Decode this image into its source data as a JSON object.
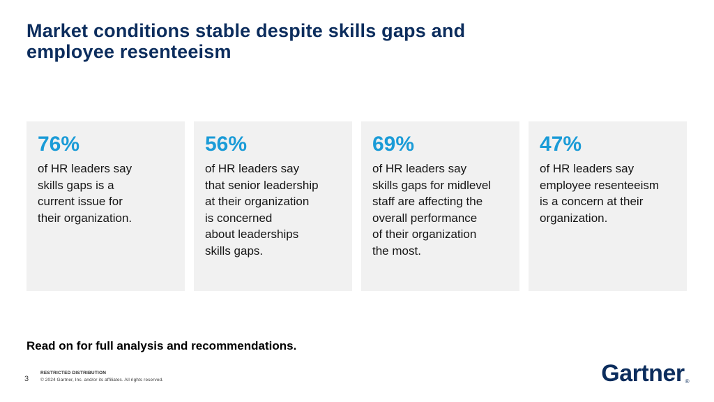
{
  "slide": {
    "title": "Market conditions stable despite skills gaps and\nemployee resenteeism",
    "stats": [
      {
        "value": "76%",
        "description": "of HR leaders say\nskills gaps is a\ncurrent issue for\ntheir organization."
      },
      {
        "value": "56%",
        "description": "of HR leaders say\nthat senior leadership\nat their organization\nis concerned\nabout leaderships\nskills gaps."
      },
      {
        "value": "69%",
        "description": "of HR leaders say\nskills gaps for midlevel\nstaff are affecting the\noverall performance\nof their organization\nthe most."
      },
      {
        "value": "47%",
        "description": "of HR leaders say\nemployee resenteeism\nis a concern at their\norganization."
      }
    ],
    "callout": "Read on for full analysis and recommendations.",
    "footer": {
      "page_number": "3",
      "classification": "RESTRICTED DISTRIBUTION",
      "copyright": "© 2024 Gartner, Inc. and/or its affiliates. All rights reserved.",
      "logo_text": "Gartner",
      "logo_mark": "®"
    },
    "colors": {
      "accent_blue": "#1a9bd7",
      "navy": "#0c2d5d",
      "card_background": "#f1f1f1"
    }
  }
}
